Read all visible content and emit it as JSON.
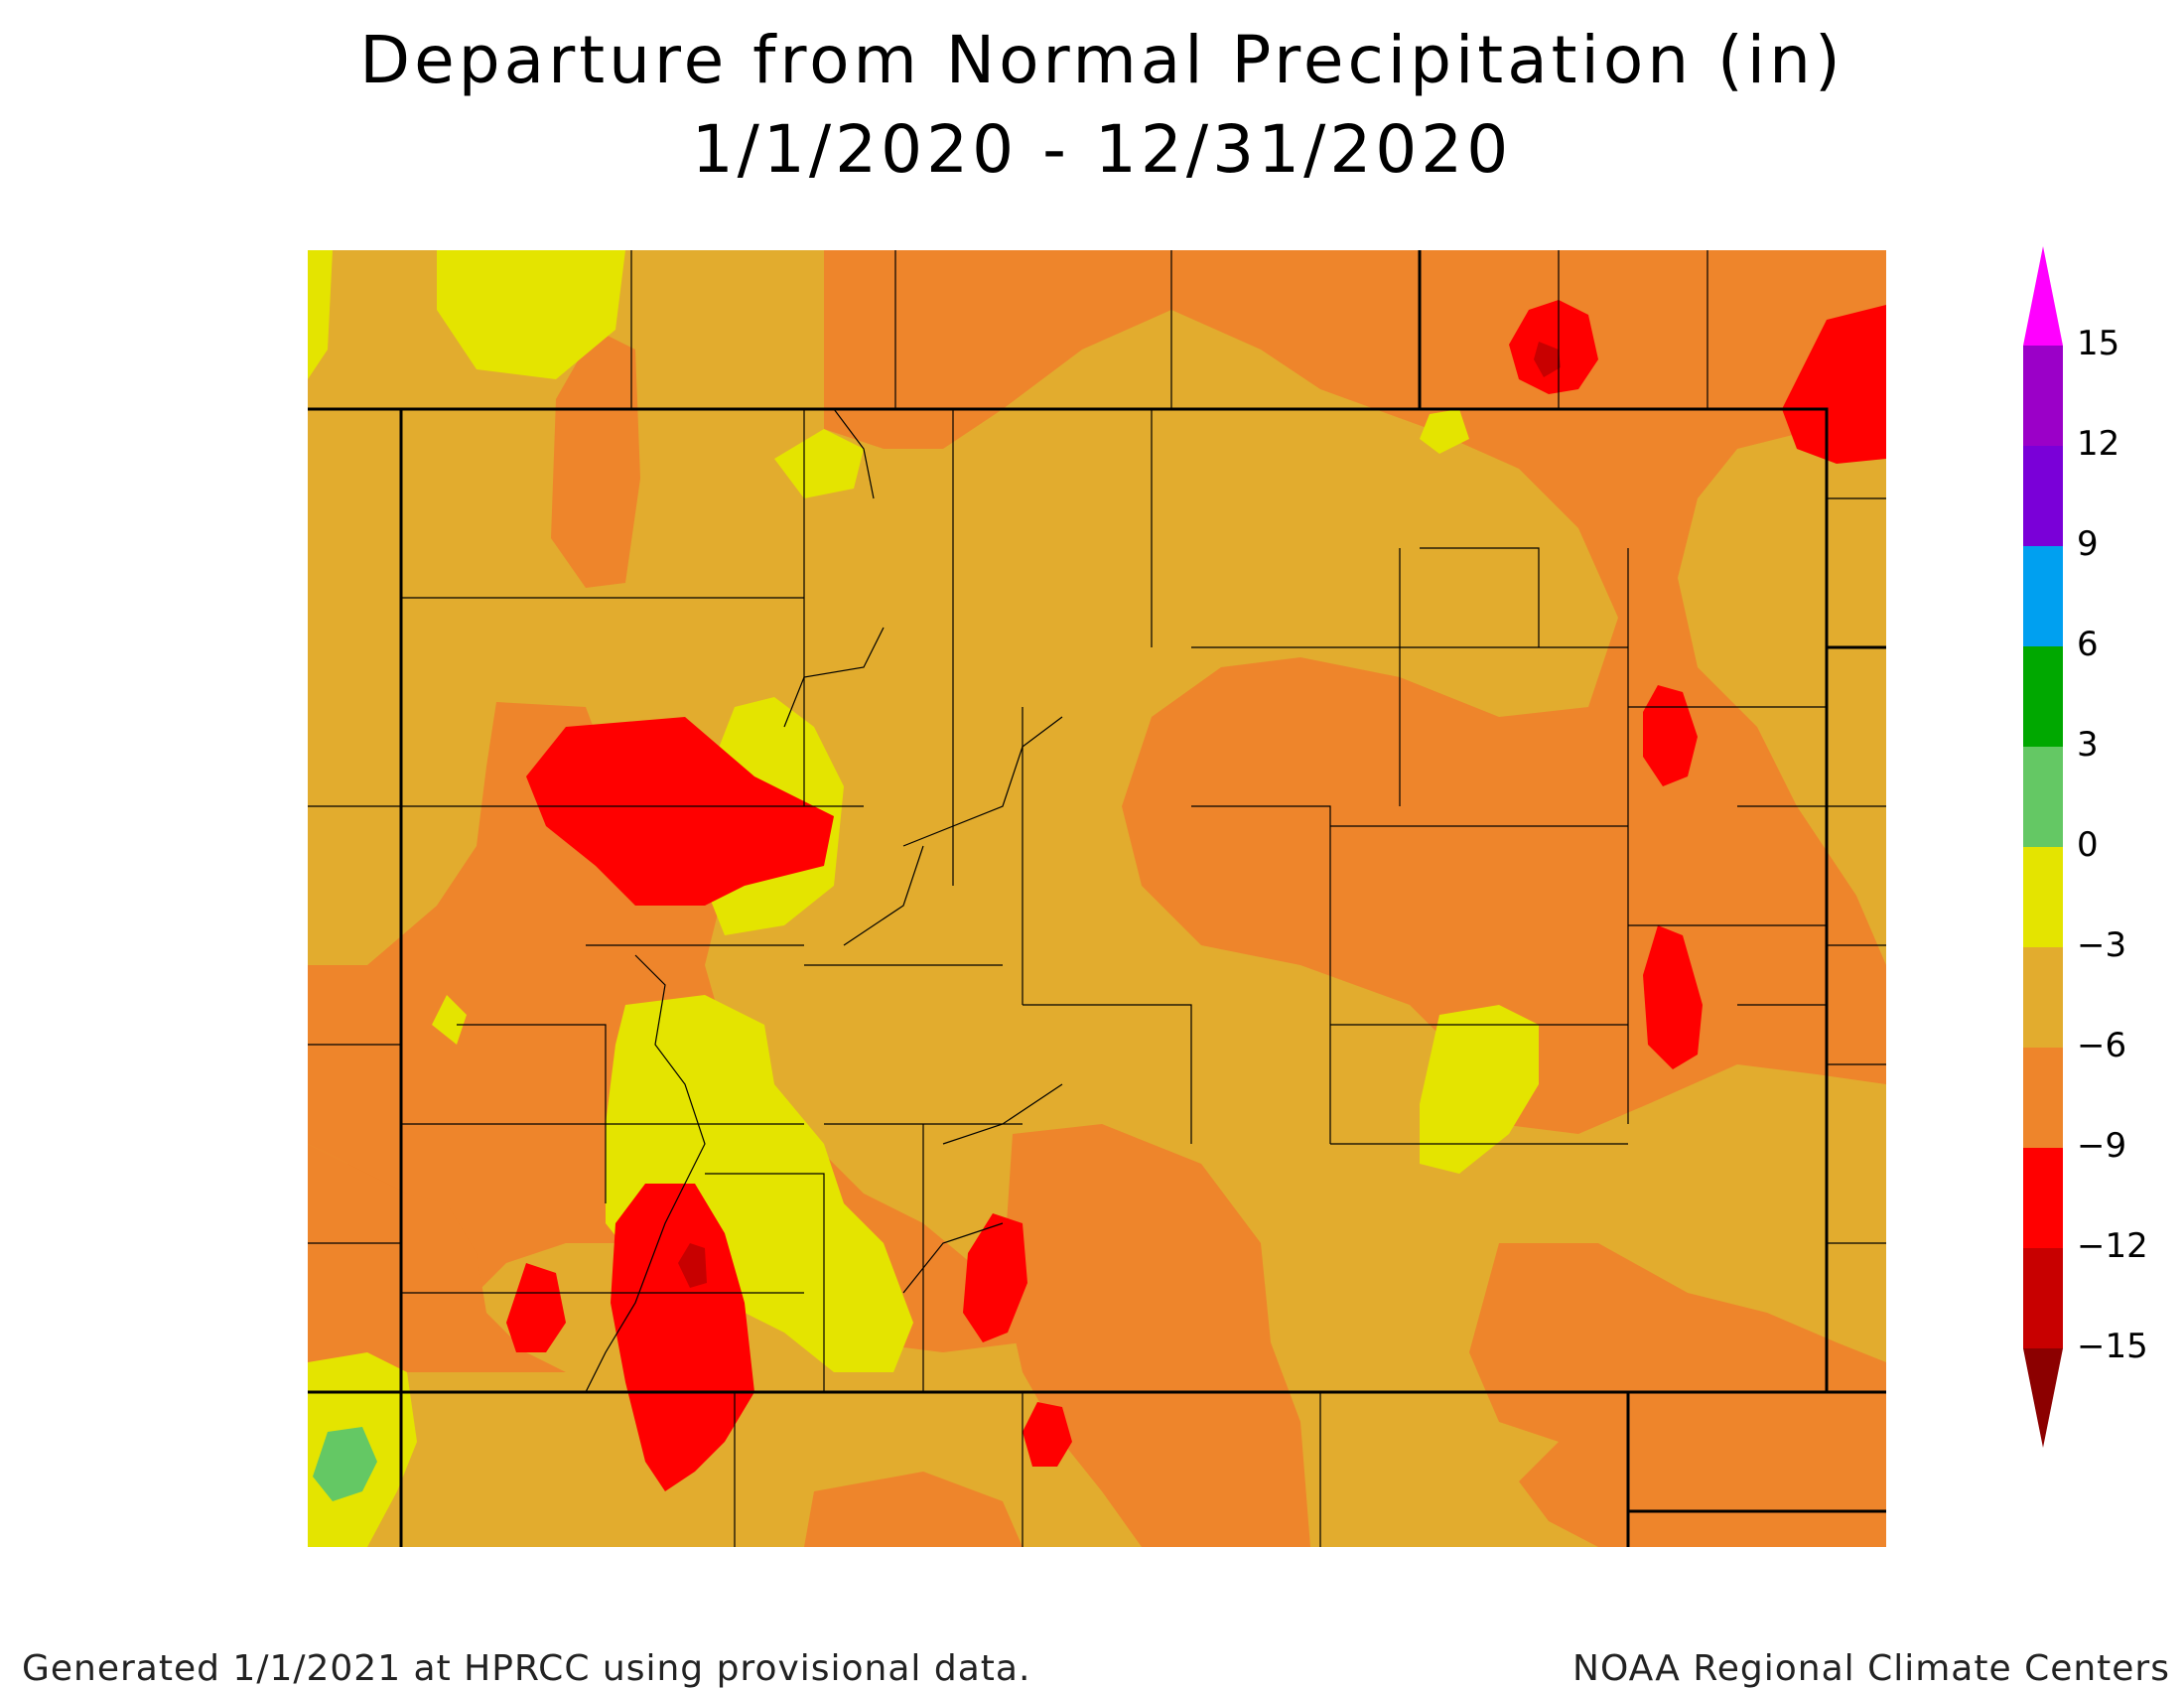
{
  "title": {
    "line1": "Departure from Normal Precipitation (in)",
    "line2": "1/1/2020 - 12/31/2020"
  },
  "legend": {
    "labels": [
      "15",
      "12",
      "9",
      "6",
      "3",
      "0",
      "−3",
      "−6",
      "−9",
      "−12",
      "−15"
    ],
    "colors": [
      "#ff00ff",
      "#9b00c8",
      "#7a00d8",
      "#00a0f0",
      "#00a800",
      "#64c864",
      "#e4e400",
      "#e2ac2e",
      "#ee852b",
      "#ff0000",
      "#c80000",
      "#8c0000"
    ]
  },
  "map": {
    "colors": {
      "wet_0_3": "#64c864",
      "dry_0_3": "#e4e400",
      "dry_3_6": "#e2ac2e",
      "dry_6_9": "#ee852b",
      "dry_9_12": "#ff0000",
      "dry_12_15": "#c80000"
    }
  },
  "footer": {
    "left": "Generated 1/1/2021 at HPRCC using provisional data.",
    "right": "NOAA Regional Climate Centers"
  }
}
